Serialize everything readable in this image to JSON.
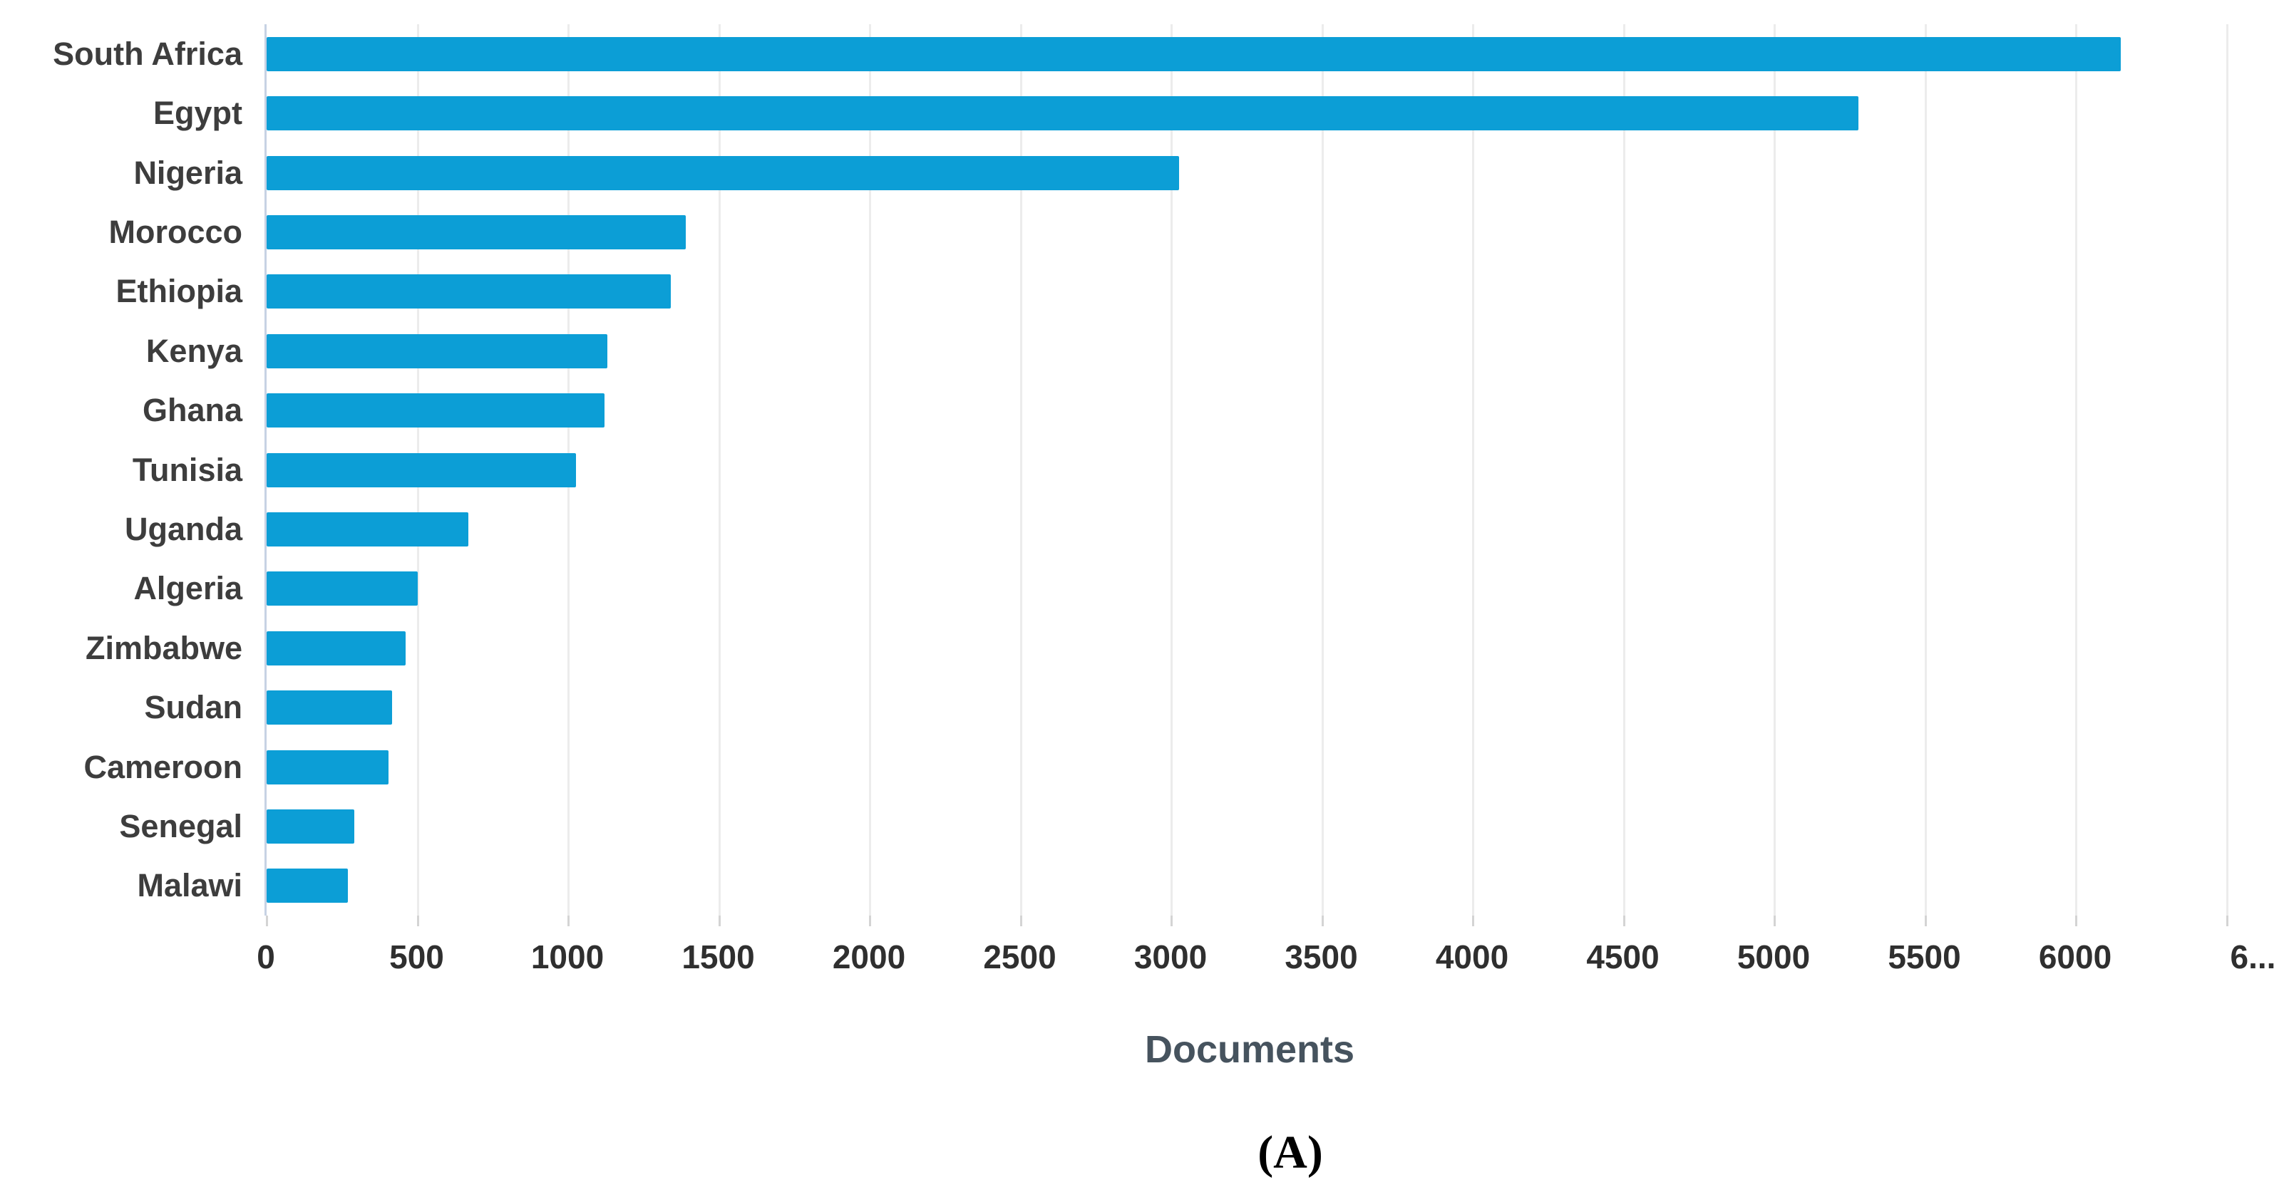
{
  "figure": {
    "caption": "(A)"
  },
  "chart_data": {
    "type": "bar",
    "orientation": "horizontal",
    "title": "",
    "xlabel": "Documents",
    "ylabel": "",
    "categories": [
      "South Africa",
      "Egypt",
      "Nigeria",
      "Morocco",
      "Ethiopia",
      "Kenya",
      "Ghana",
      "Tunisia",
      "Uganda",
      "Algeria",
      "Zimbabwe",
      "Sudan",
      "Cameroon",
      "Senegal",
      "Malawi"
    ],
    "values": [
      6150,
      5280,
      3025,
      1390,
      1340,
      1130,
      1120,
      1025,
      670,
      500,
      460,
      415,
      405,
      290,
      270
    ],
    "xlim": [
      0,
      6700
    ],
    "xticks": {
      "values": [
        0,
        500,
        1000,
        1500,
        2000,
        2500,
        3000,
        3500,
        4000,
        4500,
        5000,
        5500,
        6000,
        6500
      ],
      "labels": [
        "0",
        "500",
        "1000",
        "1500",
        "2000",
        "2500",
        "3000",
        "3500",
        "4000",
        "4500",
        "5000",
        "5500",
        "6000",
        "6..."
      ]
    },
    "grid": true,
    "legend": false,
    "colors": {
      "bar": "#0c9ed6",
      "gridline": "#ececec",
      "category_axis_line": "#c7d2e4",
      "tick_mark": "#d4d4d4",
      "category_label": "#3d3d3d",
      "tick_label": "#2f2f2f",
      "axis_title": "#46535e",
      "caption": "#000000"
    }
  }
}
